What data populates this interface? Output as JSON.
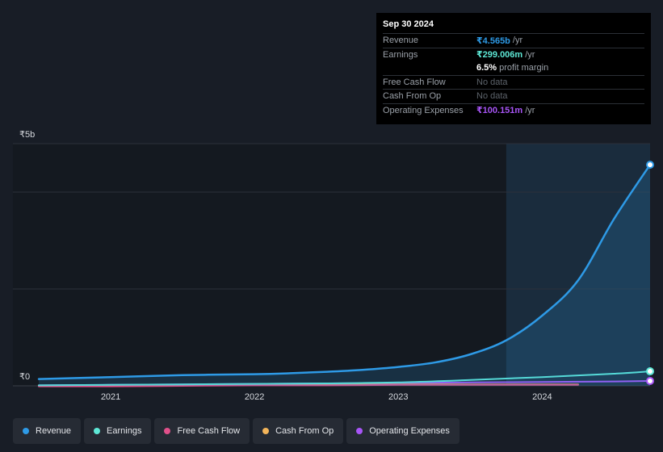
{
  "colors": {
    "revenue": "#2e9ae6",
    "earnings": "#5ee8d6",
    "free_cash_flow": "#e0508a",
    "cash_from_op": "#f2b45a",
    "operating_expenses": "#a855f7"
  },
  "tooltip": {
    "date": "Sep 30 2024",
    "rows": [
      {
        "label": "Revenue",
        "value": "₹4.565b",
        "unit": "/yr"
      },
      {
        "label": "Earnings",
        "value": "₹299.006m",
        "unit": "/yr"
      },
      {
        "label": "",
        "value": "6.5%",
        "unit": "profit margin"
      },
      {
        "label": "Free Cash Flow",
        "value": "No data",
        "unit": ""
      },
      {
        "label": "Cash From Op",
        "value": "No data",
        "unit": ""
      },
      {
        "label": "Operating Expenses",
        "value": "₹100.151m",
        "unit": "/yr"
      }
    ]
  },
  "legend": [
    {
      "label": "Revenue",
      "color_key": "revenue"
    },
    {
      "label": "Earnings",
      "color_key": "earnings"
    },
    {
      "label": "Free Cash Flow",
      "color_key": "free_cash_flow"
    },
    {
      "label": "Cash From Op",
      "color_key": "cash_from_op"
    },
    {
      "label": "Operating Expenses",
      "color_key": "operating_expenses"
    }
  ],
  "chart_data": {
    "type": "line",
    "ylabels": {
      "top": "₹5b",
      "bottom": "₹0"
    },
    "ylim": [
      0,
      5
    ],
    "xlim": [
      2020.3,
      2024.75
    ],
    "xticks": [
      {
        "label": "2021",
        "x": 2021.0
      },
      {
        "label": "2022",
        "x": 2022.0
      },
      {
        "label": "2023",
        "x": 2023.0
      },
      {
        "label": "2024",
        "x": 2024.0
      }
    ],
    "highlight_from": 2023.75,
    "series": [
      {
        "name": "Revenue",
        "color_key": "revenue",
        "fill": true,
        "x": [
          2020.5,
          2021.0,
          2021.5,
          2022.0,
          2022.25,
          2022.5,
          2022.75,
          2023.0,
          2023.25,
          2023.5,
          2023.75,
          2024.0,
          2024.25,
          2024.5,
          2024.75
        ],
        "y": [
          0.14,
          0.18,
          0.22,
          0.24,
          0.26,
          0.29,
          0.33,
          0.39,
          0.48,
          0.65,
          0.94,
          1.45,
          2.18,
          3.45,
          4.565
        ]
      },
      {
        "name": "Earnings",
        "color_key": "earnings",
        "fill": false,
        "x": [
          2020.5,
          2021.0,
          2021.5,
          2022.0,
          2022.5,
          2023.0,
          2023.5,
          2024.0,
          2024.5,
          2024.75
        ],
        "y": [
          0.01,
          0.02,
          0.03,
          0.04,
          0.05,
          0.07,
          0.12,
          0.18,
          0.25,
          0.299
        ]
      },
      {
        "name": "Free Cash Flow",
        "color_key": "free_cash_flow",
        "fill": false,
        "x": [
          2020.5,
          2021.0,
          2021.5,
          2022.0,
          2022.5,
          2023.0,
          2023.5,
          2024.0,
          2024.25
        ],
        "y": [
          -0.01,
          -0.01,
          0.0,
          0.01,
          0.01,
          0.02,
          0.02,
          0.02,
          0.02
        ]
      },
      {
        "name": "Cash From Op",
        "color_key": "cash_from_op",
        "fill": false,
        "x": [
          2020.5,
          2021.0,
          2021.5,
          2022.0,
          2022.5,
          2023.0,
          2023.5,
          2024.0,
          2024.25
        ],
        "y": [
          0.0,
          0.0,
          0.01,
          0.02,
          0.02,
          0.03,
          0.03,
          0.03,
          0.03
        ]
      },
      {
        "name": "Operating Expenses",
        "color_key": "operating_expenses",
        "fill": false,
        "x": [
          2020.5,
          2021.0,
          2021.5,
          2022.0,
          2022.5,
          2023.0,
          2023.5,
          2024.0,
          2024.5,
          2024.75
        ],
        "y": [
          0.01,
          0.02,
          0.03,
          0.04,
          0.05,
          0.06,
          0.07,
          0.08,
          0.09,
          0.1
        ]
      }
    ]
  }
}
